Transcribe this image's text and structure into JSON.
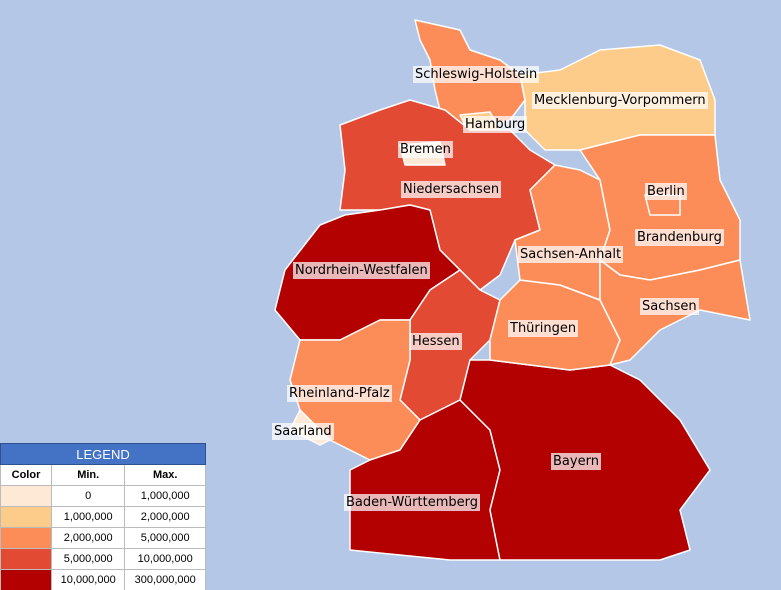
{
  "map": {
    "background": "#b4c7e7",
    "states": [
      {
        "label": "Schleswig-Holstein",
        "color": "#fc8d59"
      },
      {
        "label": "Mecklenburg-Vorpommern",
        "color": "#fdcc8a"
      },
      {
        "label": "Hamburg",
        "color": "#fdcc8a"
      },
      {
        "label": "Niedersachsen",
        "color": "#e34a33"
      },
      {
        "label": "Bremen",
        "color": "#fee8d6"
      },
      {
        "label": "Nordrhein-Westfalen",
        "color": "#b30000"
      },
      {
        "label": "Hessen",
        "color": "#e34a33"
      },
      {
        "label": "Rheinland-Pfalz",
        "color": "#fc8d59"
      },
      {
        "label": "Saarland",
        "color": "#fee8d6"
      },
      {
        "label": "Baden-Württemberg",
        "color": "#b30000"
      },
      {
        "label": "Bayern",
        "color": "#b30000"
      },
      {
        "label": "Thüringen",
        "color": "#fc8d59"
      },
      {
        "label": "Sachsen-Anhalt",
        "color": "#fc8d59"
      },
      {
        "label": "Brandenburg",
        "color": "#fc8d59"
      },
      {
        "label": "Berlin",
        "color": "#fc8d59"
      },
      {
        "label": "Sachsen",
        "color": "#fc8d59"
      }
    ]
  },
  "legend": {
    "title": "LEGEND",
    "columns": [
      "Color",
      "Min.",
      "Max."
    ],
    "rows": [
      {
        "color": "#fee8d6",
        "min": "0",
        "max": "1,000,000"
      },
      {
        "color": "#fdcc8a",
        "min": "1,000,000",
        "max": "2,000,000"
      },
      {
        "color": "#fc8d59",
        "min": "2,000,000",
        "max": "5,000,000"
      },
      {
        "color": "#e34a33",
        "min": "5,000,000",
        "max": "10,000,000"
      },
      {
        "color": "#b30000",
        "min": "10,000,000",
        "max": "300,000,000"
      }
    ]
  }
}
